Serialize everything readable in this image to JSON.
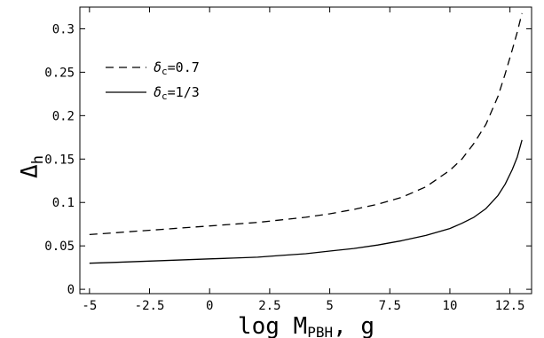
{
  "chart_data": {
    "type": "line",
    "title": "",
    "xlabel": "log M",
    "xlabel_sub": "PBH",
    "xlabel_unit": ", g",
    "ylabel": "Δ",
    "ylabel_sub": "h",
    "xlim": [
      -5.4,
      13.4
    ],
    "ylim": [
      -0.005,
      0.325
    ],
    "x_ticks": [
      -5,
      -2.5,
      0,
      2.5,
      5,
      7.5,
      10,
      12.5
    ],
    "x_tick_labels": [
      "-5",
      "-2.5",
      "0",
      "2.5",
      "5",
      "7.5",
      "10",
      "12.5"
    ],
    "y_ticks": [
      0,
      0.05,
      0.1,
      0.15,
      0.2,
      0.25,
      0.3
    ],
    "y_tick_labels": [
      "0",
      "0.05",
      "0.1",
      "0.15",
      "0.2",
      "0.25",
      "0.3"
    ],
    "grid": false,
    "legend_position": "top-left",
    "series": [
      {
        "name": "δc=0.7",
        "legend_symbol": "δ",
        "legend_sub": "c",
        "legend_value": "=0.7",
        "style": "dashed",
        "x": [
          -5,
          -4,
          -3,
          -2,
          -1,
          0,
          1,
          2,
          3,
          4,
          5,
          6,
          7,
          8,
          9,
          10,
          10.5,
          11,
          11.5,
          12,
          12.3,
          12.6,
          12.8,
          13
        ],
        "y": [
          0.063,
          0.065,
          0.067,
          0.069,
          0.071,
          0.073,
          0.075,
          0.077,
          0.08,
          0.083,
          0.087,
          0.092,
          0.098,
          0.106,
          0.118,
          0.137,
          0.15,
          0.168,
          0.19,
          0.222,
          0.248,
          0.276,
          0.296,
          0.318
        ]
      },
      {
        "name": "δc=1/3",
        "legend_symbol": "δ",
        "legend_sub": "c",
        "legend_value": "=1/3",
        "style": "solid",
        "x": [
          -5,
          -4,
          -3,
          -2,
          -1,
          0,
          1,
          2,
          3,
          4,
          5,
          6,
          7,
          8,
          9,
          10,
          10.5,
          11,
          11.5,
          12,
          12.3,
          12.6,
          12.8,
          13
        ],
        "y": [
          0.03,
          0.031,
          0.032,
          0.033,
          0.034,
          0.035,
          0.036,
          0.037,
          0.039,
          0.041,
          0.044,
          0.047,
          0.051,
          0.056,
          0.062,
          0.07,
          0.076,
          0.083,
          0.093,
          0.108,
          0.121,
          0.138,
          0.152,
          0.172
        ]
      }
    ]
  }
}
